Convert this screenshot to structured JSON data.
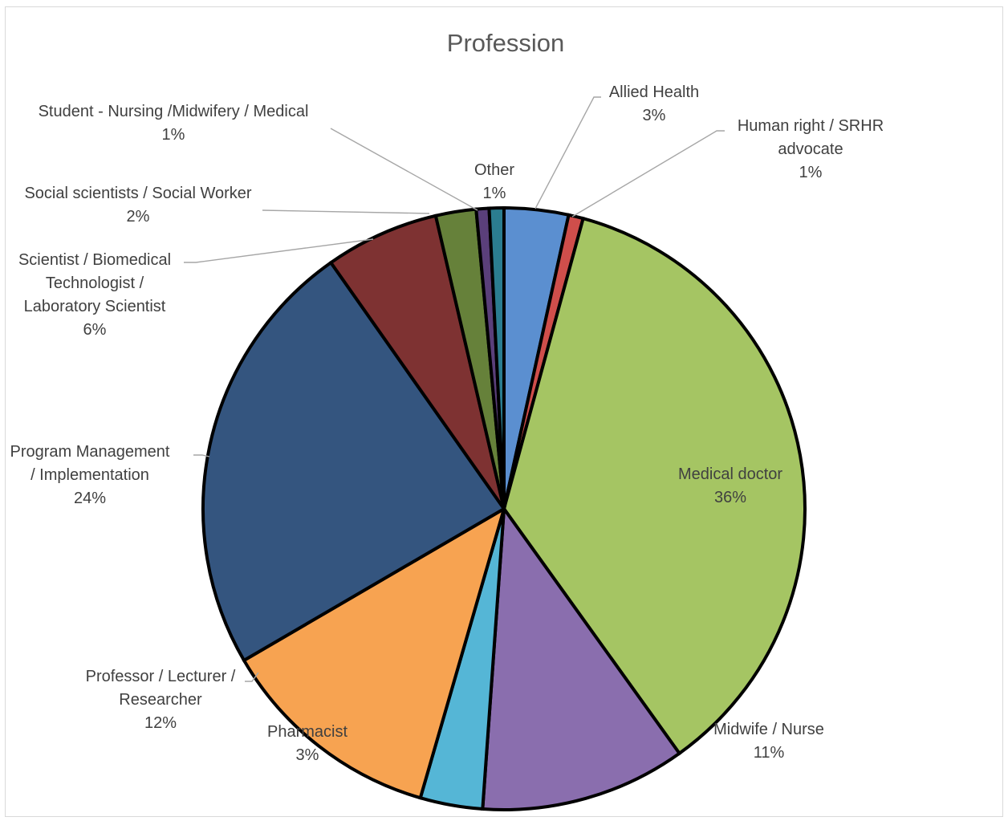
{
  "chart_data": {
    "type": "pie",
    "title": "Profession",
    "slices": [
      {
        "label": [
          "Allied Health"
        ],
        "percent_label": "3%",
        "value": 3.5,
        "color": "#5b8fd0"
      },
      {
        "label": [
          "Human right / SRHR",
          "advocate"
        ],
        "percent_label": "1%",
        "value": 0.8,
        "color": "#cf4e4b"
      },
      {
        "label": [
          "Medical doctor"
        ],
        "percent_label": "36%",
        "value": 36.4,
        "color": "#a5c563"
      },
      {
        "label": [
          "Midwife / Nurse"
        ],
        "percent_label": "11%",
        "value": 11.2,
        "color": "#8a6eae"
      },
      {
        "label": [
          "Pharmacist"
        ],
        "percent_label": "3%",
        "value": 3.4,
        "color": "#55b6d6"
      },
      {
        "label": [
          "Professor / Lecturer /",
          "Researcher"
        ],
        "percent_label": "12%",
        "value": 12.3,
        "color": "#f7a351"
      },
      {
        "label": [
          "Program Management",
          "/ Implementation"
        ],
        "percent_label": "24%",
        "value": 24.0,
        "color": "#34557f"
      },
      {
        "label": [
          "Scientist / Biomedical",
          "Technologist /",
          "Laboratory Scientist"
        ],
        "percent_label": "6%",
        "value": 6.2,
        "color": "#7e3232"
      },
      {
        "label": [
          "Social scientists / Social Worker"
        ],
        "percent_label": "2%",
        "value": 2.2,
        "color": "#66813a"
      },
      {
        "label": [
          "Student - Nursing /Midwifery / Medical"
        ],
        "percent_label": "1%",
        "value": 0.7,
        "color": "#5a3f7a"
      },
      {
        "label": [
          "Other"
        ],
        "percent_label": "1%",
        "value": 0.8,
        "color": "#2b7d90"
      }
    ]
  }
}
